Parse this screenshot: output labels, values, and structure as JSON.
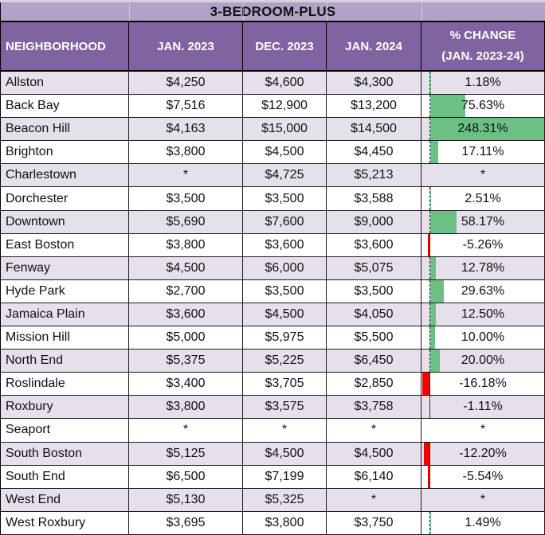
{
  "colors": {
    "title_bg": "#B3A2C7",
    "header_bg": "#8064A2",
    "header_text": "#FFFFFF",
    "row_bg": "#FFFFFF",
    "row_alt_bg": "#E5E0EC",
    "positive_bar": "#6CC084",
    "negative_bar": "#F20000",
    "grid_border": "#1B1B1B",
    "text": "#111111"
  },
  "chart_data": {
    "type": "table",
    "title": "3-BEDROOM-PLUS",
    "columns": [
      "NEIGHBORHOOD",
      "JAN. 2023",
      "DEC. 2023",
      "JAN. 2024",
      "% CHANGE (JAN. 2023-24)"
    ],
    "header_pct_lines": [
      "% CHANGE",
      "(JAN. 2023-24)"
    ],
    "missing_value_symbol": "*",
    "data_bars": {
      "column": "% CHANGE (JAN. 2023-24)",
      "positive_color": "#6CC084",
      "negative_color": "#F20000",
      "axis": "dashed-zero-line",
      "scale_max": 248.31,
      "scale_min": -16.18
    },
    "rows": [
      {
        "neighborhood": "Allston",
        "jan_2023": "$4,250",
        "dec_2023": "$4,600",
        "jan_2024": "$4,300",
        "change_pct": "1.18%"
      },
      {
        "neighborhood": "Back Bay",
        "jan_2023": "$7,516",
        "dec_2023": "$12,900",
        "jan_2024": "$13,200",
        "change_pct": "75.63%"
      },
      {
        "neighborhood": "Beacon Hill",
        "jan_2023": "$4,163",
        "dec_2023": "$15,000",
        "jan_2024": "$14,500",
        "change_pct": "248.31%"
      },
      {
        "neighborhood": "Brighton",
        "jan_2023": "$3,800",
        "dec_2023": "$4,500",
        "jan_2024": "$4,450",
        "change_pct": "17.11%"
      },
      {
        "neighborhood": "Charlestown",
        "jan_2023": "*",
        "dec_2023": "$4,725",
        "jan_2024": "$5,213",
        "change_pct": "*"
      },
      {
        "neighborhood": "Dorchester",
        "jan_2023": "$3,500",
        "dec_2023": "$3,500",
        "jan_2024": "$3,588",
        "change_pct": "2.51%"
      },
      {
        "neighborhood": "Downtown",
        "jan_2023": "$5,690",
        "dec_2023": "$7,600",
        "jan_2024": "$9,000",
        "change_pct": "58.17%"
      },
      {
        "neighborhood": "East Boston",
        "jan_2023": "$3,800",
        "dec_2023": "$3,600",
        "jan_2024": "$3,600",
        "change_pct": "-5.26%"
      },
      {
        "neighborhood": "Fenway",
        "jan_2023": "$4,500",
        "dec_2023": "$6,000",
        "jan_2024": "$5,075",
        "change_pct": "12.78%"
      },
      {
        "neighborhood": "Hyde Park",
        "jan_2023": "$2,700",
        "dec_2023": "$3,500",
        "jan_2024": "$3,500",
        "change_pct": "29.63%"
      },
      {
        "neighborhood": "Jamaica Plain",
        "jan_2023": "$3,600",
        "dec_2023": "$4,500",
        "jan_2024": "$4,050",
        "change_pct": "12.50%"
      },
      {
        "neighborhood": "Mission Hill",
        "jan_2023": "$5,000",
        "dec_2023": "$5,975",
        "jan_2024": "$5,500",
        "change_pct": "10.00%"
      },
      {
        "neighborhood": "North End",
        "jan_2023": "$5,375",
        "dec_2023": "$5,225",
        "jan_2024": "$6,450",
        "change_pct": "20.00%"
      },
      {
        "neighborhood": "Roslindale",
        "jan_2023": "$3,400",
        "dec_2023": "$3,705",
        "jan_2024": "$2,850",
        "change_pct": "-16.18%"
      },
      {
        "neighborhood": "Roxbury",
        "jan_2023": "$3,800",
        "dec_2023": "$3,575",
        "jan_2024": "$3,758",
        "change_pct": "-1.11%"
      },
      {
        "neighborhood": "Seaport",
        "jan_2023": "*",
        "dec_2023": "*",
        "jan_2024": "*",
        "change_pct": "*"
      },
      {
        "neighborhood": "South Boston",
        "jan_2023": "$5,125",
        "dec_2023": "$4,500",
        "jan_2024": "$4,500",
        "change_pct": "-12.20%"
      },
      {
        "neighborhood": "South End",
        "jan_2023": "$6,500",
        "dec_2023": "$7,199",
        "jan_2024": "$6,140",
        "change_pct": "-5.54%"
      },
      {
        "neighborhood": "West End",
        "jan_2023": "$5,130",
        "dec_2023": "$5,325",
        "jan_2024": "*",
        "change_pct": "*"
      },
      {
        "neighborhood": "West Roxbury",
        "jan_2023": "$3,695",
        "dec_2023": "$3,800",
        "jan_2024": "$3,750",
        "change_pct": "1.49%"
      }
    ]
  }
}
